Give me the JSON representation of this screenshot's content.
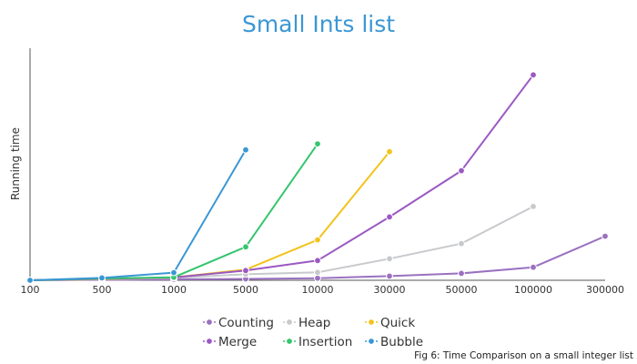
{
  "chart_data": {
    "type": "line",
    "title": "Small Ints list",
    "title_color": "#3a97d4",
    "xlabel": "",
    "ylabel": "Running time",
    "x_ticks": [
      "100",
      "500",
      "1000",
      "5000",
      "10000",
      "30000",
      "50000",
      "100000",
      "300000"
    ],
    "ylim": [
      0,
      100
    ],
    "grid": false,
    "legend_position": "bottom-center",
    "caption": "Fig 6: Time Comparison on a small integer list",
    "series": [
      {
        "name": "Counting",
        "color": "#9a71c0",
        "values": [
          0,
          0.2,
          0.4,
          0.6,
          0.9,
          1.8,
          3.0,
          5.6,
          19.0
        ]
      },
      {
        "name": "Heap",
        "color": "#c7c9cc",
        "values": [
          0,
          0.4,
          1.0,
          2.6,
          3.4,
          9.3,
          15.8,
          31.8,
          null
        ]
      },
      {
        "name": "Quick",
        "color": "#f2c31c",
        "values": [
          0,
          0.5,
          1.2,
          4.6,
          17.4,
          55.4,
          null,
          null,
          null
        ]
      },
      {
        "name": "Merge",
        "color": "#9b59c2",
        "values": [
          0,
          0.6,
          1.2,
          4.2,
          8.5,
          27.3,
          47.2,
          88.5,
          null
        ]
      },
      {
        "name": "Insertion",
        "color": "#35c56e",
        "values": [
          0,
          0.8,
          1.3,
          14.4,
          58.8,
          null,
          null,
          null,
          null
        ]
      },
      {
        "name": "Bubble",
        "color": "#3a97d4",
        "values": [
          0,
          1.0,
          3.3,
          56.2,
          null,
          null,
          null,
          null,
          null
        ]
      }
    ]
  }
}
